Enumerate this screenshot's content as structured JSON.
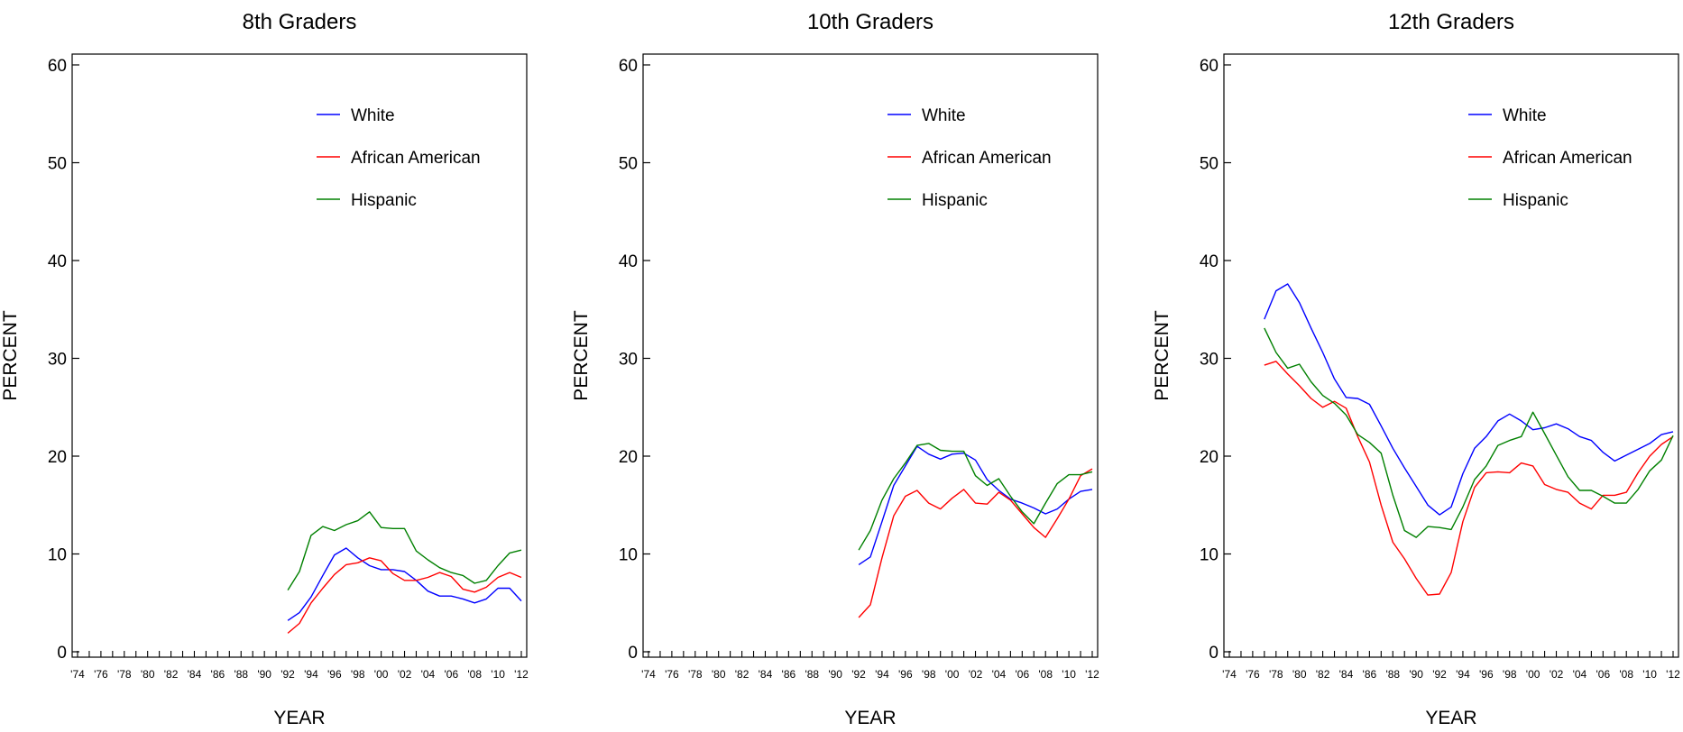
{
  "chart_data": [
    {
      "type": "line",
      "title": "8th Graders",
      "xlabel": "YEAR",
      "ylabel": "PERCENT",
      "ylim": [
        0,
        60
      ],
      "yticks": [
        0,
        10,
        20,
        30,
        40,
        50,
        60
      ],
      "xlim": [
        1974,
        2012
      ],
      "x_tick_labels": [
        "'74",
        "'76",
        "'78",
        "'80",
        "'82",
        "'84",
        "'86",
        "'88",
        "'90",
        "'92",
        "'94",
        "'96",
        "'98",
        "'00",
        "'02",
        "'04",
        "'06",
        "'08",
        "'10",
        "'12"
      ],
      "grid": false,
      "legend_position": "top-right",
      "x": [
        1992,
        1993,
        1994,
        1995,
        1996,
        1997,
        1998,
        1999,
        2000,
        2001,
        2002,
        2003,
        2004,
        2005,
        2006,
        2007,
        2008,
        2009,
        2010,
        2011,
        2012
      ],
      "series": [
        {
          "name": "White",
          "color": "#0000ff",
          "values": [
            3.2,
            4.0,
            5.6,
            7.8,
            9.9,
            10.6,
            9.6,
            8.8,
            8.4,
            8.4,
            8.2,
            7.3,
            6.2,
            5.7,
            5.7,
            5.4,
            5.0,
            5.4,
            6.5,
            6.5,
            5.2
          ]
        },
        {
          "name": "African American",
          "color": "#ff0000",
          "values": [
            1.9,
            2.9,
            5.0,
            6.5,
            7.9,
            8.9,
            9.1,
            9.6,
            9.3,
            8.0,
            7.3,
            7.3,
            7.6,
            8.1,
            7.7,
            6.4,
            6.1,
            6.6,
            7.6,
            8.1,
            7.6
          ]
        },
        {
          "name": "Hispanic",
          "color": "#008000",
          "values": [
            6.3,
            8.2,
            11.9,
            12.8,
            12.4,
            13.0,
            13.4,
            14.3,
            12.7,
            12.6,
            12.6,
            10.3,
            9.4,
            8.6,
            8.1,
            7.8,
            7.0,
            7.3,
            8.8,
            10.1,
            10.4
          ]
        }
      ]
    },
    {
      "type": "line",
      "title": "10th Graders",
      "xlabel": "YEAR",
      "ylabel": "PERCENT",
      "ylim": [
        0,
        60
      ],
      "yticks": [
        0,
        10,
        20,
        30,
        40,
        50,
        60
      ],
      "xlim": [
        1974,
        2012
      ],
      "x_tick_labels": [
        "'74",
        "'76",
        "'78",
        "'80",
        "'82",
        "'84",
        "'86",
        "'88",
        "'90",
        "'92",
        "'94",
        "'96",
        "'98",
        "'00",
        "'02",
        "'04",
        "'06",
        "'08",
        "'10",
        "'12"
      ],
      "grid": false,
      "legend_position": "top-right",
      "x": [
        1992,
        1993,
        1994,
        1995,
        1996,
        1997,
        1998,
        1999,
        2000,
        2001,
        2002,
        2003,
        2004,
        2005,
        2006,
        2007,
        2008,
        2009,
        2010,
        2011,
        2012
      ],
      "series": [
        {
          "name": "White",
          "color": "#0000ff",
          "values": [
            8.9,
            9.7,
            13.3,
            17.0,
            19.0,
            21.0,
            20.2,
            19.7,
            20.2,
            20.3,
            19.6,
            17.6,
            16.5,
            15.6,
            15.2,
            14.7,
            14.1,
            14.6,
            15.6,
            16.4,
            16.6
          ]
        },
        {
          "name": "African American",
          "color": "#ff0000",
          "values": [
            3.5,
            4.8,
            9.6,
            13.9,
            15.9,
            16.5,
            15.2,
            14.6,
            15.7,
            16.6,
            15.2,
            15.1,
            16.3,
            15.5,
            14.1,
            12.7,
            11.7,
            13.6,
            15.6,
            18.0,
            18.7
          ]
        },
        {
          "name": "Hispanic",
          "color": "#008000",
          "values": [
            10.4,
            12.4,
            15.5,
            17.7,
            19.3,
            21.1,
            21.3,
            20.6,
            20.5,
            20.5,
            18.0,
            17.0,
            17.7,
            15.9,
            14.3,
            13.1,
            15.2,
            17.2,
            18.1,
            18.1,
            18.4
          ]
        }
      ]
    },
    {
      "type": "line",
      "title": "12th Graders",
      "xlabel": "YEAR",
      "ylabel": "PERCENT",
      "ylim": [
        0,
        60
      ],
      "yticks": [
        0,
        10,
        20,
        30,
        40,
        50,
        60
      ],
      "xlim": [
        1974,
        2012
      ],
      "x_tick_labels": [
        "'74",
        "'76",
        "'78",
        "'80",
        "'82",
        "'84",
        "'86",
        "'88",
        "'90",
        "'92",
        "'94",
        "'96",
        "'98",
        "'00",
        "'02",
        "'04",
        "'06",
        "'08",
        "'10",
        "'12"
      ],
      "grid": false,
      "legend_position": "top-right",
      "x": [
        1977,
        1978,
        1979,
        1980,
        1981,
        1982,
        1983,
        1984,
        1985,
        1986,
        1987,
        1988,
        1989,
        1990,
        1991,
        1992,
        1993,
        1994,
        1995,
        1996,
        1997,
        1998,
        1999,
        2000,
        2001,
        2002,
        2003,
        2004,
        2005,
        2006,
        2007,
        2008,
        2009,
        2010,
        2011,
        2012
      ],
      "series": [
        {
          "name": "White",
          "color": "#0000ff",
          "values": [
            34.0,
            36.9,
            37.6,
            35.7,
            33.1,
            30.6,
            27.9,
            26.0,
            25.9,
            25.3,
            23.1,
            20.8,
            18.8,
            16.9,
            15.0,
            14.0,
            14.8,
            18.2,
            20.8,
            22.0,
            23.6,
            24.3,
            23.6,
            22.7,
            22.9,
            23.3,
            22.8,
            22.0,
            21.6,
            20.4,
            19.5,
            20.1,
            20.7,
            21.3,
            22.2,
            22.5
          ]
        },
        {
          "name": "African American",
          "color": "#ff0000",
          "values": [
            29.3,
            29.7,
            28.4,
            27.2,
            25.9,
            25.0,
            25.6,
            24.9,
            22.0,
            19.4,
            15.0,
            11.2,
            9.5,
            7.5,
            5.8,
            5.9,
            8.1,
            13.3,
            16.8,
            18.3,
            18.4,
            18.3,
            19.3,
            19.0,
            17.1,
            16.6,
            16.3,
            15.2,
            14.6,
            16.0,
            16.0,
            16.3,
            18.3,
            20.0,
            21.2,
            22.0
          ]
        },
        {
          "name": "Hispanic",
          "color": "#008000",
          "values": [
            33.1,
            30.6,
            29.0,
            29.4,
            27.6,
            26.2,
            25.4,
            24.2,
            22.2,
            21.4,
            20.3,
            16.0,
            12.4,
            11.7,
            12.8,
            12.7,
            12.5,
            14.8,
            17.6,
            19.0,
            21.1,
            21.6,
            22.0,
            24.5,
            22.3,
            20.1,
            17.9,
            16.5,
            16.5,
            15.9,
            15.2,
            15.2,
            16.6,
            18.5,
            19.6,
            22.1
          ]
        }
      ]
    }
  ]
}
